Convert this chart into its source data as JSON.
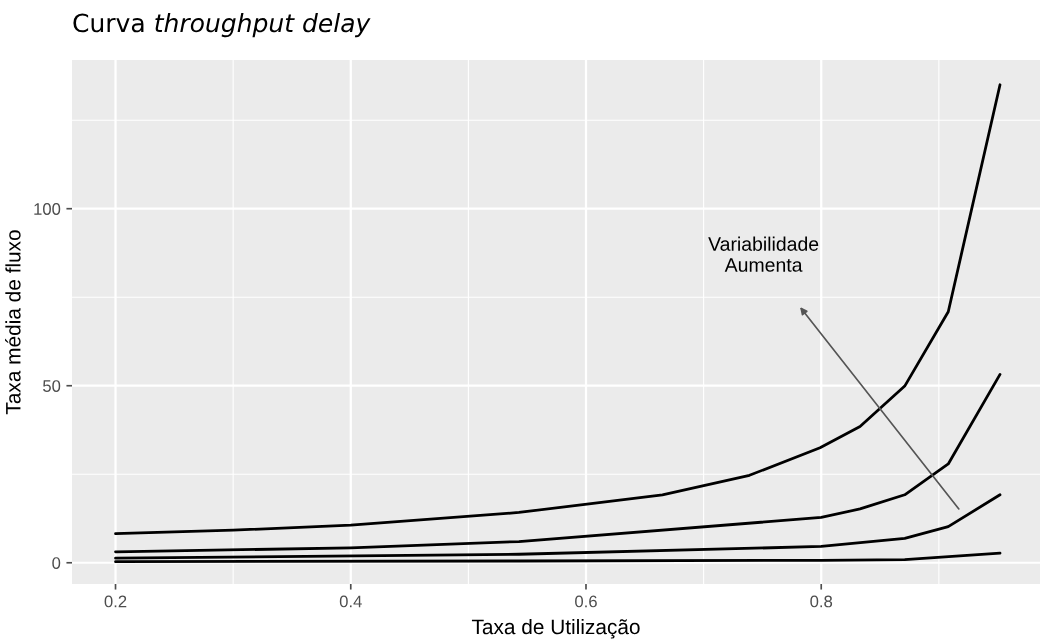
{
  "chart_data": {
    "type": "line",
    "title": "Curva throughput delay",
    "xlabel": "Taxa de Utilização",
    "ylabel": "Taxa média de fluxo",
    "series": [
      {
        "color": "#000000",
        "x": [
          0.2,
          0.3,
          0.4,
          0.543,
          0.665,
          0.739,
          0.799,
          0.833,
          0.871,
          0.908,
          0.952
        ],
        "values": [
          8.2,
          9.2,
          10.6,
          14.2,
          19.2,
          24.7,
          32.5,
          38.5,
          49.9,
          70.9,
          135
        ]
      },
      {
        "color": "#000000",
        "x": [
          0.2,
          0.4,
          0.543,
          0.8,
          0.833,
          0.871,
          0.908,
          0.952
        ],
        "values": [
          3.1,
          4.2,
          6.0,
          12.8,
          15.2,
          19.2,
          27.9,
          53.2
        ]
      },
      {
        "color": "#000000",
        "x": [
          0.2,
          0.543,
          0.8,
          0.871,
          0.908,
          0.952
        ],
        "values": [
          1.3,
          2.4,
          4.6,
          6.9,
          10.2,
          19.2
        ]
      },
      {
        "color": "#000000",
        "x": [
          0.2,
          0.543,
          0.8,
          0.871,
          0.952
        ],
        "values": [
          0.3,
          0.5,
          0.7,
          0.9,
          2.7
        ]
      }
    ],
    "annotations": [
      "Variabilidade\nAumenta"
    ],
    "xlim": [
      0.163,
      0.986
    ],
    "ylim": [
      -6,
      142
    ],
    "xticks": [
      0.2,
      0.4,
      0.6,
      0.8
    ],
    "yticks": [
      0,
      50,
      100
    ],
    "grid": true
  }
}
